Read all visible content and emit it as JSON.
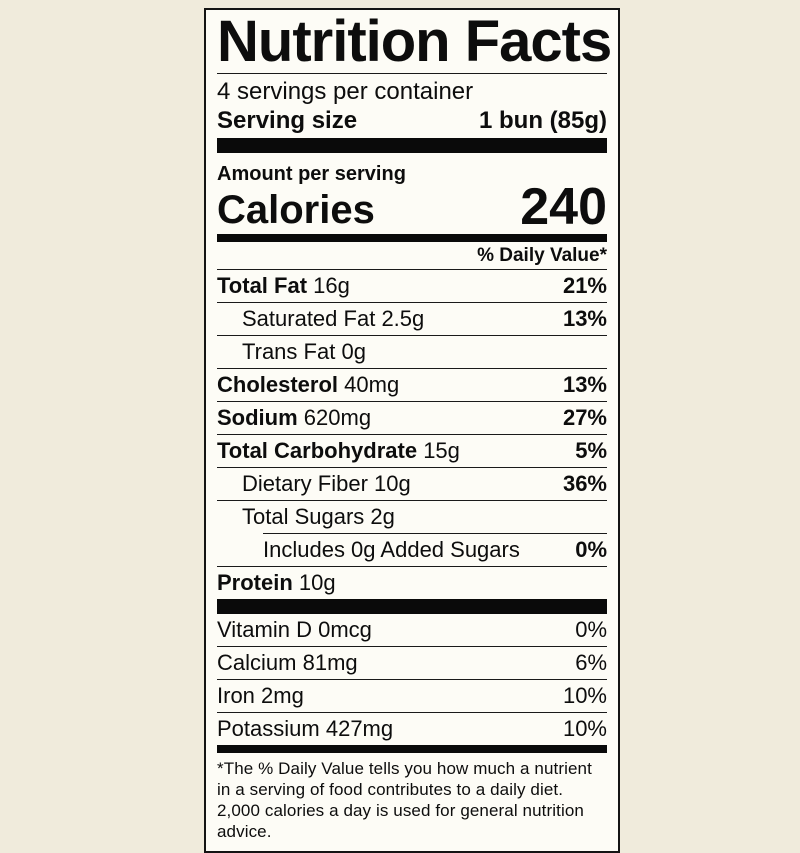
{
  "colors": {
    "page_background": "#f0ebdc",
    "label_background": "#fdfcf6",
    "ink": "#0d0d0d"
  },
  "label": {
    "title": "Nutrition Facts",
    "servings_per_container": "4 servings per container",
    "serving_size_label": "Serving size",
    "serving_size_value": "1 bun (85g)",
    "amount_per_serving": "Amount per serving",
    "calories_label": "Calories",
    "calories_value": "240",
    "daily_value_header": "% Daily Value*",
    "nutrients": [
      {
        "name": "Total Fat",
        "amount": "16g",
        "dv": "21%",
        "indent": 0,
        "bold_name": true,
        "bold_dv": true
      },
      {
        "name": "Saturated Fat",
        "amount": "2.5g",
        "dv": "13%",
        "indent": 1,
        "bold_name": false,
        "bold_dv": true
      },
      {
        "name": "Trans Fat",
        "amount": "0g",
        "dv": "",
        "indent": 1,
        "bold_name": false,
        "bold_dv": true
      },
      {
        "name": "Cholesterol",
        "amount": "40mg",
        "dv": "13%",
        "indent": 0,
        "bold_name": true,
        "bold_dv": true
      },
      {
        "name": "Sodium",
        "amount": "620mg",
        "dv": "27%",
        "indent": 0,
        "bold_name": true,
        "bold_dv": true
      },
      {
        "name": "Total Carbohydrate",
        "amount": "15g",
        "dv": "5%",
        "indent": 0,
        "bold_name": true,
        "bold_dv": true
      },
      {
        "name": "Dietary Fiber",
        "amount": "10g",
        "dv": "36%",
        "indent": 1,
        "bold_name": false,
        "bold_dv": true
      },
      {
        "name": "Total Sugars",
        "amount": "2g",
        "dv": "",
        "indent": 1,
        "bold_name": false,
        "bold_dv": true
      },
      {
        "name": "Includes 0g Added Sugars",
        "amount": "",
        "dv": "0%",
        "indent": 2,
        "bold_name": false,
        "bold_dv": true
      },
      {
        "name": "Protein",
        "amount": "10g",
        "dv": "",
        "indent": 0,
        "bold_name": true,
        "bold_dv": true
      }
    ],
    "vitamins": [
      {
        "name": "Vitamin D",
        "amount": "0mcg",
        "dv": "0%",
        "indent": 0,
        "bold_name": false,
        "bold_dv": false
      },
      {
        "name": "Calcium",
        "amount": "81mg",
        "dv": "6%",
        "indent": 0,
        "bold_name": false,
        "bold_dv": false
      },
      {
        "name": "Iron",
        "amount": "2mg",
        "dv": "10%",
        "indent": 0,
        "bold_name": false,
        "bold_dv": false
      },
      {
        "name": "Potassium",
        "amount": "427mg",
        "dv": "10%",
        "indent": 0,
        "bold_name": false,
        "bold_dv": false
      }
    ],
    "footnote": "*The % Daily Value tells you how much a nutrient in a serving of food contributes to a daily diet. 2,000 calories a day is used for general nutrition advice."
  }
}
